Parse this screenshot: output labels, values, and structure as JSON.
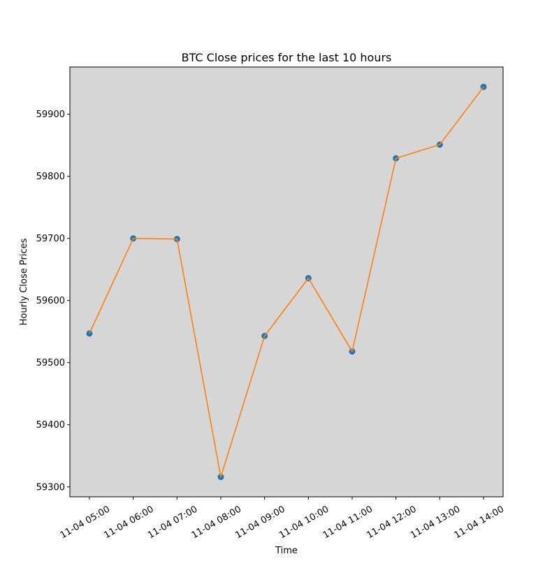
{
  "chart_data": {
    "type": "line",
    "title": "BTC Close prices for the last 10 hours",
    "xlabel": "Time",
    "ylabel": "Hourly Close Prices",
    "x": [
      "11-04 05:00",
      "11-04 06:00",
      "11-04 07:00",
      "11-04 08:00",
      "11-04 09:00",
      "11-04 10:00",
      "11-04 11:00",
      "11-04 12:00",
      "11-04 13:00",
      "11-04 14:00"
    ],
    "series": [
      {
        "values": [
          59547,
          59700,
          59699,
          59316,
          59543,
          59636,
          59518,
          59829,
          59851,
          59944
        ],
        "line_color": "#ff7f0e",
        "marker_color": "#1f77b4"
      }
    ],
    "ylim": [
      59284,
      59976
    ],
    "yticks": [
      59300,
      59400,
      59500,
      59600,
      59700,
      59800,
      59900
    ],
    "legend": "none",
    "grid": false,
    "plot_background": "#d6d6d6"
  }
}
